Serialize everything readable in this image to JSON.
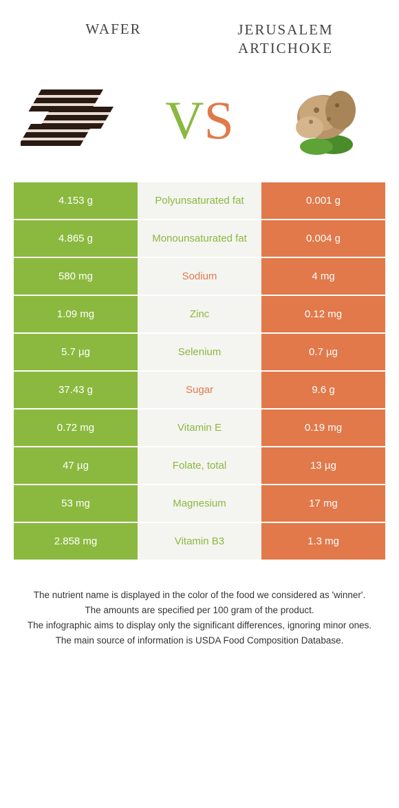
{
  "header": {
    "left_title": "Wafer",
    "right_title_line1": "Jerusalem",
    "right_title_line2": "artichoke"
  },
  "vs": {
    "v": "V",
    "s": "S"
  },
  "colors": {
    "green": "#8bb93f",
    "orange": "#e1794a",
    "mid_bg": "#f4f4f0",
    "text": "#333333"
  },
  "rows": [
    {
      "left": "4.153 g",
      "label": "Polyunsaturated fat",
      "right": "0.001 g",
      "winner": "green"
    },
    {
      "left": "4.865 g",
      "label": "Monounsaturated fat",
      "right": "0.004 g",
      "winner": "green"
    },
    {
      "left": "580 mg",
      "label": "Sodium",
      "right": "4 mg",
      "winner": "orange"
    },
    {
      "left": "1.09 mg",
      "label": "Zinc",
      "right": "0.12 mg",
      "winner": "green"
    },
    {
      "left": "5.7 µg",
      "label": "Selenium",
      "right": "0.7 µg",
      "winner": "green"
    },
    {
      "left": "37.43 g",
      "label": "Sugar",
      "right": "9.6 g",
      "winner": "orange"
    },
    {
      "left": "0.72 mg",
      "label": "Vitamin E",
      "right": "0.19 mg",
      "winner": "green"
    },
    {
      "left": "47 µg",
      "label": "Folate, total",
      "right": "13 µg",
      "winner": "green"
    },
    {
      "left": "53 mg",
      "label": "Magnesium",
      "right": "17 mg",
      "winner": "green"
    },
    {
      "left": "2.858 mg",
      "label": "Vitamin B3",
      "right": "1.3 mg",
      "winner": "green"
    }
  ],
  "footer": {
    "line1": "The nutrient name is displayed in the color of the food we considered as 'winner'.",
    "line2": "The amounts are specified per 100 gram of the product.",
    "line3": "The infographic aims to display only the significant differences, ignoring minor ones.",
    "line4": "The main source of information is USDA Food Composition Database."
  }
}
